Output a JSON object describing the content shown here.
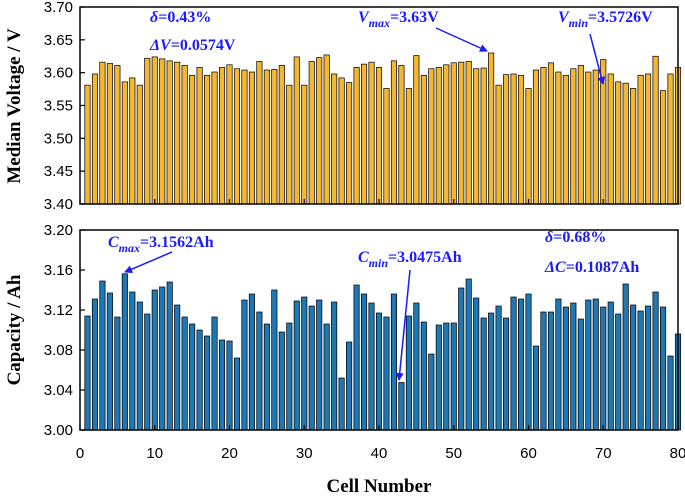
{
  "chart_data": [
    {
      "type": "bar",
      "name": "voltage",
      "ylabel": "Median Voltage / V",
      "ylim": [
        3.4,
        3.7
      ],
      "yticks": [
        "3.40",
        "3.45",
        "3.50",
        "3.55",
        "3.60",
        "3.65",
        "3.70"
      ],
      "bar_color": "#f5b731",
      "x": [
        1,
        2,
        3,
        4,
        5,
        6,
        7,
        8,
        9,
        10,
        11,
        12,
        13,
        14,
        15,
        16,
        17,
        18,
        19,
        20,
        21,
        22,
        23,
        24,
        25,
        26,
        27,
        28,
        29,
        30,
        31,
        32,
        33,
        34,
        35,
        36,
        37,
        38,
        39,
        40,
        41,
        42,
        43,
        44,
        45,
        46,
        47,
        48,
        49,
        50,
        51,
        52,
        53,
        54,
        55,
        56,
        57,
        58,
        59,
        60,
        61,
        62,
        63,
        64,
        65,
        66,
        67,
        68,
        69,
        70,
        71,
        72,
        73,
        74,
        75,
        76,
        77,
        78,
        79,
        80
      ],
      "values": [
        3.581,
        3.598,
        3.616,
        3.614,
        3.611,
        3.586,
        3.592,
        3.581,
        3.622,
        3.624,
        3.621,
        3.618,
        3.616,
        3.611,
        3.596,
        3.608,
        3.596,
        3.601,
        3.608,
        3.612,
        3.606,
        3.604,
        3.601,
        3.617,
        3.604,
        3.605,
        3.611,
        3.581,
        3.624,
        3.581,
        3.617,
        3.623,
        3.627,
        3.598,
        3.592,
        3.585,
        3.608,
        3.613,
        3.616,
        3.608,
        3.576,
        3.618,
        3.611,
        3.576,
        3.626,
        3.596,
        3.606,
        3.608,
        3.612,
        3.615,
        3.616,
        3.617,
        3.606,
        3.607,
        3.63,
        3.581,
        3.597,
        3.598,
        3.596,
        3.576,
        3.604,
        3.608,
        3.615,
        3.601,
        3.596,
        3.606,
        3.611,
        3.601,
        3.604,
        3.62,
        3.598,
        3.586,
        3.584,
        3.576,
        3.596,
        3.598,
        3.625,
        3.5726,
        3.598,
        3.608
      ],
      "annotations": {
        "delta_sym": "δ",
        "delta_val": "=0.43%",
        "dv_sym": "ΔV",
        "dv_val": "=0.0574V",
        "vmax_base": "V",
        "vmax_sub": "max",
        "vmax_val": "=3.63V",
        "vmin_base": "V",
        "vmin_sub": "min",
        "vmin_val": "=3.5726V"
      },
      "max_index": 55,
      "min_index": 78
    },
    {
      "type": "bar",
      "name": "capacity",
      "ylabel": "Capacity / Ah",
      "ylim": [
        3.0,
        3.2
      ],
      "yticks": [
        "3.00",
        "3.04",
        "3.08",
        "3.12",
        "3.16",
        "3.20"
      ],
      "bar_color": "#1f77b4",
      "x": [
        1,
        2,
        3,
        4,
        5,
        6,
        7,
        8,
        9,
        10,
        11,
        12,
        13,
        14,
        15,
        16,
        17,
        18,
        19,
        20,
        21,
        22,
        23,
        24,
        25,
        26,
        27,
        28,
        29,
        30,
        31,
        32,
        33,
        34,
        35,
        36,
        37,
        38,
        39,
        40,
        41,
        42,
        43,
        44,
        45,
        46,
        47,
        48,
        49,
        50,
        51,
        52,
        53,
        54,
        55,
        56,
        57,
        58,
        59,
        60,
        61,
        62,
        63,
        64,
        65,
        66,
        67,
        68,
        69,
        70,
        71,
        72,
        73,
        74,
        75,
        76,
        77,
        78,
        79,
        80
      ],
      "values": [
        3.114,
        3.131,
        3.149,
        3.137,
        3.113,
        3.1562,
        3.138,
        3.128,
        3.116,
        3.14,
        3.143,
        3.148,
        3.125,
        3.113,
        3.106,
        3.1,
        3.094,
        3.113,
        3.09,
        3.089,
        3.072,
        3.13,
        3.136,
        3.118,
        3.106,
        3.14,
        3.098,
        3.107,
        3.129,
        3.133,
        3.124,
        3.13,
        3.106,
        3.128,
        3.052,
        3.088,
        3.145,
        3.136,
        3.127,
        3.117,
        3.113,
        3.136,
        3.0475,
        3.114,
        3.127,
        3.108,
        3.076,
        3.105,
        3.107,
        3.107,
        3.142,
        3.151,
        3.132,
        3.112,
        3.117,
        3.124,
        3.112,
        3.133,
        3.131,
        3.136,
        3.084,
        3.118,
        3.118,
        3.131,
        3.123,
        3.127,
        3.111,
        3.13,
        3.131,
        3.123,
        3.128,
        3.116,
        3.146,
        3.125,
        3.119,
        3.124,
        3.138,
        3.123,
        3.074,
        3.096
      ],
      "annotations": {
        "delta_sym": "δ",
        "delta_val": "=0.68%",
        "dc_sym": "ΔC",
        "dc_val": "=0.1087Ah",
        "cmax_base": "C",
        "cmax_sub": "max",
        "cmax_val": "=3.1562Ah",
        "cmin_base": "C",
        "cmin_sub": "min",
        "cmin_val": "=3.0475Ah"
      },
      "max_index": 6,
      "min_index": 43
    }
  ],
  "x_axis": {
    "xlabel": "Cell Number",
    "xlim": [
      0,
      80
    ],
    "xticks": [
      "0",
      "10",
      "20",
      "30",
      "40",
      "50",
      "60",
      "70",
      "80"
    ]
  },
  "colors": {
    "annotation": "#1a1aff",
    "axis": "#000000"
  }
}
